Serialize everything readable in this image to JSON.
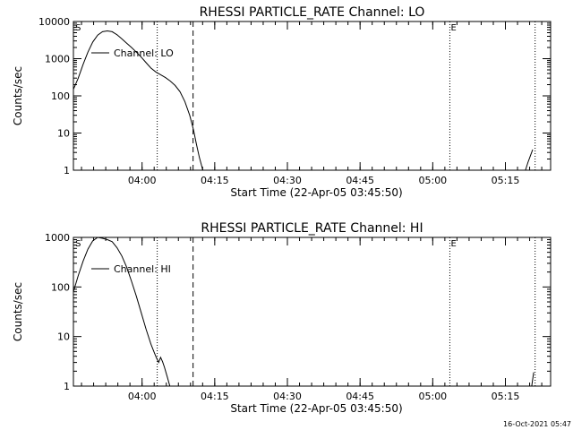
{
  "footer": {
    "timestamp": "16-Oct-2021 05:47"
  },
  "chart_data": [
    {
      "type": "line",
      "title": "RHESSI PARTICLE_RATE Channel: LO",
      "xlabel": "Start Time (22-Apr-05 03:45:50)",
      "ylabel": "Counts/sec",
      "yscale": "log",
      "ylim": [
        1,
        10000
      ],
      "xlim_min": [
        0,
        98.5
      ],
      "y_ticks": [
        {
          "v": 1,
          "label": "1"
        },
        {
          "v": 10,
          "label": "10"
        },
        {
          "v": 100,
          "label": "100"
        },
        {
          "v": 1000,
          "label": "1000"
        },
        {
          "v": 10000,
          "label": "10000"
        }
      ],
      "x_ticks": [
        {
          "v": 14.17,
          "label": "04:00"
        },
        {
          "v": 29.17,
          "label": "04:15"
        },
        {
          "v": 44.17,
          "label": "04:30"
        },
        {
          "v": 59.17,
          "label": "04:45"
        },
        {
          "v": 74.17,
          "label": "05:00"
        },
        {
          "v": 89.17,
          "label": "05:15"
        }
      ],
      "legend": {
        "label": "Channel: LO",
        "position": "top-left"
      },
      "markers": [
        {
          "x": 0.2,
          "label": "S",
          "style": "none"
        },
        {
          "x": 17.3,
          "label": "",
          "style": "dotted"
        },
        {
          "x": 24.7,
          "label": "",
          "style": "dashed"
        },
        {
          "x": 77.7,
          "label": "E",
          "style": "dotted"
        },
        {
          "x": 95.3,
          "label": "",
          "style": "dotted"
        }
      ],
      "series": [
        {
          "points": [
            [
              0,
              150
            ],
            [
              1,
              300
            ],
            [
              2,
              700
            ],
            [
              3,
              1500
            ],
            [
              4,
              2800
            ],
            [
              5,
              4300
            ],
            [
              6,
              5300
            ],
            [
              7,
              5600
            ],
            [
              8,
              5300
            ],
            [
              9,
              4400
            ],
            [
              10,
              3400
            ],
            [
              11,
              2600
            ],
            [
              12,
              2000
            ],
            [
              13,
              1500
            ],
            [
              14,
              1100
            ],
            [
              15,
              780
            ],
            [
              16,
              560
            ],
            [
              17,
              440
            ],
            [
              18,
              370
            ],
            [
              19,
              310
            ],
            [
              20,
              250
            ],
            [
              21,
              190
            ],
            [
              22,
              130
            ],
            [
              23,
              70
            ],
            [
              24,
              30
            ],
            [
              24.8,
              12
            ],
            [
              25.4,
              5
            ],
            [
              26.0,
              2.2
            ],
            [
              26.4,
              1.4
            ],
            [
              26.7,
              1
            ]
          ]
        },
        {
          "points": [
            [
              93.3,
              1
            ],
            [
              93.8,
              1.6
            ],
            [
              94.3,
              2.4
            ],
            [
              94.8,
              3.6
            ]
          ]
        }
      ]
    },
    {
      "type": "line",
      "title": "RHESSI PARTICLE_RATE Channel: HI",
      "xlabel": "Start Time (22-Apr-05 03:45:50)",
      "ylabel": "Counts/sec",
      "yscale": "log",
      "ylim": [
        1,
        1000
      ],
      "xlim_min": [
        0,
        98.5
      ],
      "y_ticks": [
        {
          "v": 1,
          "label": "1"
        },
        {
          "v": 10,
          "label": "10"
        },
        {
          "v": 100,
          "label": "100"
        },
        {
          "v": 1000,
          "label": "1000"
        }
      ],
      "x_ticks": [
        {
          "v": 14.17,
          "label": "04:00"
        },
        {
          "v": 29.17,
          "label": "04:15"
        },
        {
          "v": 44.17,
          "label": "04:30"
        },
        {
          "v": 59.17,
          "label": "04:45"
        },
        {
          "v": 74.17,
          "label": "05:00"
        },
        {
          "v": 89.17,
          "label": "05:15"
        }
      ],
      "legend": {
        "label": "Channel: HI",
        "position": "top-left"
      },
      "markers": [
        {
          "x": 0.2,
          "label": "S",
          "style": "none"
        },
        {
          "x": 17.3,
          "label": "",
          "style": "dotted"
        },
        {
          "x": 24.7,
          "label": "",
          "style": "dashed"
        },
        {
          "x": 77.7,
          "label": "E",
          "style": "dotted"
        },
        {
          "x": 95.3,
          "label": "",
          "style": "dotted"
        }
      ],
      "series": [
        {
          "points": [
            [
              0,
              80
            ],
            [
              1,
              170
            ],
            [
              2,
              330
            ],
            [
              3,
              580
            ],
            [
              4,
              850
            ],
            [
              5,
              1000
            ],
            [
              6,
              960
            ],
            [
              7,
              900
            ],
            [
              8,
              820
            ],
            [
              9,
              620
            ],
            [
              10,
              420
            ],
            [
              11,
              250
            ],
            [
              12,
              130
            ],
            [
              13,
              65
            ],
            [
              14,
              30
            ],
            [
              15,
              14
            ],
            [
              16,
              7
            ],
            [
              16.6,
              5
            ],
            [
              17.1,
              3.8
            ],
            [
              17.6,
              3
            ],
            [
              18.0,
              3.8
            ],
            [
              18.4,
              3.1
            ],
            [
              18.8,
              2.4
            ],
            [
              19.4,
              1.5
            ],
            [
              19.9,
              1
            ]
          ]
        },
        {
          "points": [
            [
              94.6,
              1
            ],
            [
              95.0,
              1.9
            ]
          ]
        }
      ]
    }
  ]
}
